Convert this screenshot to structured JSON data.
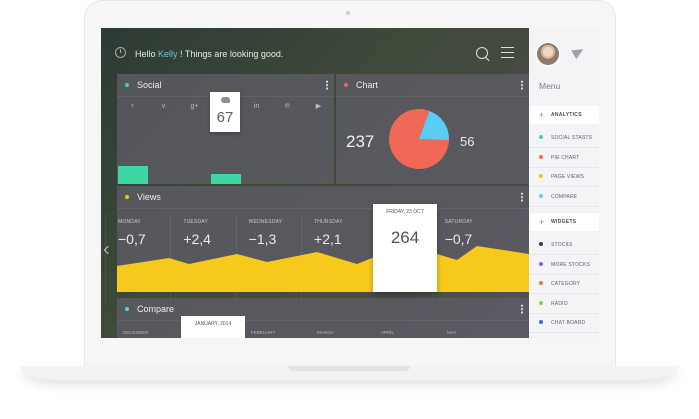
{
  "header": {
    "greeting_prefix": "Hello ",
    "user_name": "Kelly",
    "greeting_suffix": " ! Things are looking good."
  },
  "social": {
    "title": "Social",
    "dot_color": "#3ed6a2",
    "bar_color": "#3ed6a2",
    "icons": [
      "vine-icon",
      "vimeo-icon",
      "google-plus-icon",
      "twitter-icon",
      "linkedin-icon",
      "pinterest-icon",
      "youtube-icon"
    ],
    "icon_glyphs": [
      "♆",
      "v",
      "g+",
      "✦",
      "in",
      "℗",
      "▶"
    ],
    "highlight_value": "67"
  },
  "chart": {
    "title": "Chart",
    "dot_color": "#f06a5a",
    "left_value": "237",
    "right_value": "56",
    "pie": {
      "red_color": "#f26856",
      "blue_color": "#5bcdf4",
      "blue_fraction": 0.2
    }
  },
  "views": {
    "title": "Views",
    "dot_color": "#f0c419",
    "fill_color": "#f6c91b",
    "days": [
      {
        "label": "MONDAY",
        "value": "−0,7"
      },
      {
        "label": "TUESDAY",
        "value": "+2,4"
      },
      {
        "label": "WEDNESDAY",
        "value": "−1,3"
      },
      {
        "label": "THURSDAY",
        "value": "+2,1"
      },
      {
        "label": "FRIDAY, 23 OCT",
        "value": "264"
      },
      {
        "label": "SATURDAY",
        "value": "−0,7"
      }
    ]
  },
  "compare": {
    "title": "Compare",
    "dot_color": "#5bcdf4",
    "months": [
      "DECEMBER",
      "JANUARY, 2014",
      "FEBRUARY",
      "MARCH",
      "APRIL",
      "MAY"
    ]
  },
  "menu": {
    "title": "Menu",
    "sections": [
      {
        "label": "ANALYTICS",
        "items": [
          {
            "label": "SOCIAL STASTS",
            "color": "#3ed6a2"
          },
          {
            "label": "PIE CHART",
            "color": "#f06a5a"
          },
          {
            "label": "PAGE VIEWS",
            "color": "#f0c419"
          },
          {
            "label": "COMPARE",
            "color": "#5bcdf4"
          }
        ]
      },
      {
        "label": "WIDGETS",
        "items": [
          {
            "label": "STOCKS",
            "color": "#3a3d45"
          },
          {
            "label": "MORE STOCKS",
            "color": "#8c62d8"
          },
          {
            "label": "CATEGORY",
            "color": "#f07a3a"
          },
          {
            "label": "RADIO",
            "color": "#8ed04a"
          },
          {
            "label": "CHAT BOARD",
            "color": "#3a6ad8"
          }
        ]
      }
    ]
  }
}
